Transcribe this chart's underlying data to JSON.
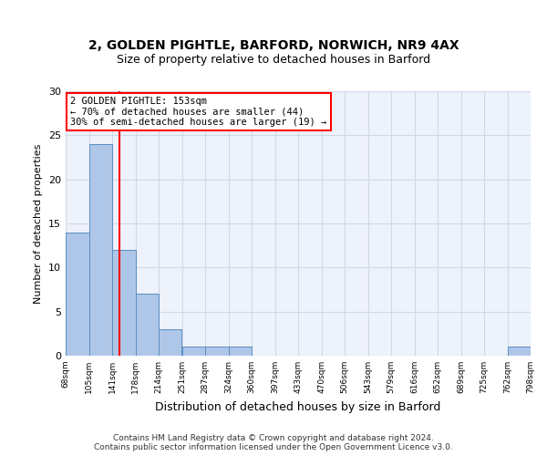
{
  "title1": "2, GOLDEN PIGHTLE, BARFORD, NORWICH, NR9 4AX",
  "title2": "Size of property relative to detached houses in Barford",
  "xlabel": "Distribution of detached houses by size in Barford",
  "ylabel": "Number of detached properties",
  "bin_edges": [
    68,
    105,
    141,
    178,
    214,
    251,
    287,
    324,
    360,
    397,
    433,
    470,
    506,
    543,
    579,
    616,
    652,
    689,
    725,
    762,
    798
  ],
  "bar_heights": [
    14,
    24,
    12,
    7,
    3,
    1,
    1,
    1,
    0,
    0,
    0,
    0,
    0,
    0,
    0,
    0,
    0,
    0,
    0,
    1
  ],
  "bar_color": "#aec6e8",
  "bar_edgecolor": "#5a8fc0",
  "grid_color": "#d0d8e8",
  "vline_x": 153,
  "vline_color": "red",
  "annotation_lines": [
    "2 GOLDEN PIGHTLE: 153sqm",
    "← 70% of detached houses are smaller (44)",
    "30% of semi-detached houses are larger (19) →"
  ],
  "annotation_box_color": "white",
  "annotation_box_edgecolor": "red",
  "ylim": [
    0,
    30
  ],
  "yticks": [
    0,
    5,
    10,
    15,
    20,
    25,
    30
  ],
  "footer": "Contains HM Land Registry data © Crown copyright and database right 2024.\nContains public sector information licensed under the Open Government Licence v3.0.",
  "tick_labels": [
    "68sqm",
    "105sqm",
    "141sqm",
    "178sqm",
    "214sqm",
    "251sqm",
    "287sqm",
    "324sqm",
    "360sqm",
    "397sqm",
    "433sqm",
    "470sqm",
    "506sqm",
    "543sqm",
    "579sqm",
    "616sqm",
    "652sqm",
    "689sqm",
    "725sqm",
    "762sqm",
    "798sqm"
  ]
}
